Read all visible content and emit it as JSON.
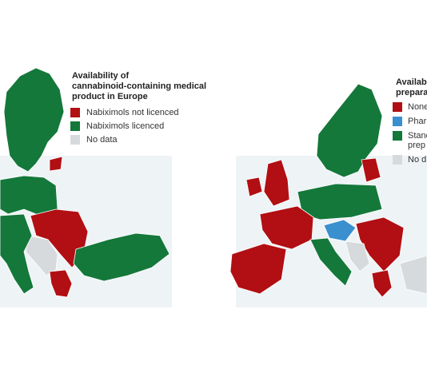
{
  "left_legend": {
    "title_lines": [
      "Availability of",
      "cannabinoid-containing medical",
      "product in Europe"
    ],
    "items": [
      {
        "label": "Nabiximols not licenced",
        "color": "#b10f13"
      },
      {
        "label": "Nabiximols licenced",
        "color": "#14783a"
      },
      {
        "label": "No data",
        "color": "#d7dadd"
      }
    ]
  },
  "right_legend": {
    "title_lines": [
      "Availab",
      "prepara"
    ],
    "items": [
      {
        "lines": [
          "None"
        ],
        "color": "#b10f13"
      },
      {
        "lines": [
          "Phar"
        ],
        "color": "#3a8fcf"
      },
      {
        "lines": [
          "Stand",
          "prep"
        ],
        "color": "#14783a"
      },
      {
        "lines": [
          "No d"
        ],
        "color": "#d7dadd"
      }
    ]
  }
}
